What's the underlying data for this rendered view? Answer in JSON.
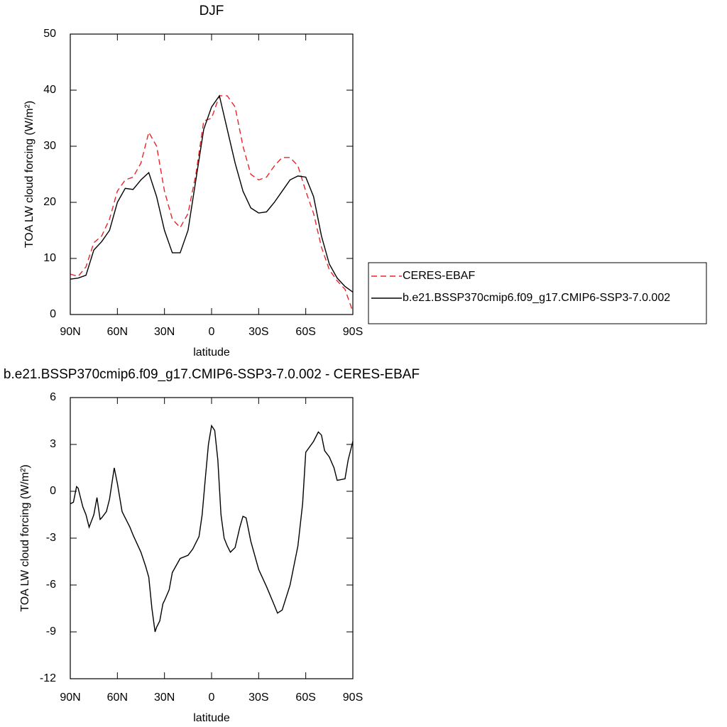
{
  "chart_data": [
    {
      "type": "line",
      "title": "DJF",
      "xlabel": "latitude",
      "ylabel": "TOA LW cloud forcing (W/m²)",
      "x": [
        90,
        85,
        80,
        75,
        70,
        65,
        60,
        55,
        50,
        45,
        40,
        35,
        30,
        25,
        20,
        15,
        10,
        5,
        0,
        -5,
        -10,
        -15,
        -20,
        -25,
        -30,
        -35,
        -40,
        -45,
        -50,
        -55,
        -60,
        -65,
        -70,
        -75,
        -80,
        -85,
        -90
      ],
      "series": [
        {
          "name": "CERES-EBAF",
          "color": "#e8242b",
          "linestyle": "dashed",
          "values": [
            7.2,
            6.8,
            8.5,
            12.8,
            14,
            17,
            22,
            24,
            24.5,
            27,
            32.5,
            30,
            22,
            17,
            15.5,
            18,
            25,
            34.5,
            35,
            39,
            39,
            37,
            30,
            25,
            24,
            24.5,
            26.5,
            28,
            28,
            26.5,
            22,
            18,
            12,
            8,
            6,
            4.5,
            0.5
          ]
        },
        {
          "name": "b.e21.BSSP370cmip6.f09_g17.CMIP6-SSP3-7.0.002",
          "color": "#000000",
          "linestyle": "solid",
          "values": [
            6.3,
            6.5,
            7,
            11.5,
            13,
            15,
            20,
            22.5,
            22.3,
            24,
            25.3,
            21,
            15,
            11,
            11,
            15,
            24,
            33,
            37,
            39,
            33,
            27,
            22,
            19,
            18.1,
            18.3,
            20,
            22,
            24,
            24.7,
            24.5,
            21,
            14,
            9,
            6.5,
            5,
            4
          ]
        }
      ],
      "xlim": [
        90,
        -90
      ],
      "xticks": [
        {
          "value": 90,
          "label": "90N"
        },
        {
          "value": 60,
          "label": "60N"
        },
        {
          "value": 30,
          "label": "30N"
        },
        0,
        {
          "value": -30,
          "label": "30S"
        },
        {
          "value": -60,
          "label": "60S"
        },
        {
          "value": -90,
          "label": "90S"
        }
      ],
      "ylim": [
        0,
        50
      ],
      "yticks": [
        0,
        10,
        20,
        30,
        40,
        50
      ],
      "legend": "right"
    },
    {
      "type": "line",
      "title": "b.e21.BSSP370cmip6.f09_g17.CMIP6-SSP3-7.0.002 - CERES-EBAF",
      "xlabel": "latitude",
      "ylabel": "TOA LW cloud forcing (W/m²)",
      "x": [
        90,
        88,
        86,
        85,
        82,
        80,
        78,
        75,
        73,
        71,
        70,
        67,
        65,
        62,
        60,
        57,
        55,
        52,
        50,
        45,
        42,
        40,
        38,
        36,
        35,
        33,
        31,
        30,
        27,
        25,
        20,
        15,
        12,
        10,
        8,
        6,
        4,
        2,
        0,
        -2,
        -4,
        -6,
        -8,
        -10,
        -12,
        -15,
        -18,
        -20,
        -22,
        -25,
        -30,
        -35,
        -40,
        -42,
        -45,
        -50,
        -55,
        -58,
        -60,
        -65,
        -68,
        -70,
        -72,
        -75,
        -78,
        -80,
        -85,
        -87,
        -90
      ],
      "series": [
        {
          "name": "b.e21.BSSP370cmip6.f09_g17.CMIP6-SSP3-7.0.002 - CERES-EBAF",
          "color": "#000000",
          "linestyle": "solid",
          "values": [
            -0.8,
            -0.7,
            0.3,
            0.2,
            -1.0,
            -1.5,
            -2.3,
            -1.5,
            -0.4,
            -1.8,
            -1.7,
            -1.3,
            -0.5,
            1.5,
            0.5,
            -1.3,
            -1.7,
            -2.3,
            -2.8,
            -3.9,
            -4.8,
            -5.5,
            -7.5,
            -9.0,
            -8.7,
            -8.3,
            -7.2,
            -7.0,
            -6.3,
            -5.2,
            -4.3,
            -4.1,
            -3.7,
            -3.3,
            -2.9,
            -1.5,
            0.8,
            3.0,
            4.2,
            3.9,
            2.0,
            -1.5,
            -3.0,
            -3.5,
            -3.9,
            -3.6,
            -2.3,
            -1.6,
            -1.7,
            -3.2,
            -5.0,
            -6.1,
            -7.3,
            -7.8,
            -7.6,
            -6.0,
            -3.5,
            -0.8,
            2.5,
            3.2,
            3.8,
            3.6,
            2.6,
            2.2,
            1.5,
            0.7,
            0.8,
            2.0,
            3.2
          ]
        }
      ],
      "xlim": [
        90,
        -90
      ],
      "xticks": [
        {
          "value": 90,
          "label": "90N"
        },
        {
          "value": 60,
          "label": "60N"
        },
        {
          "value": 30,
          "label": "30N"
        },
        0,
        {
          "value": -30,
          "label": "30S"
        },
        {
          "value": -60,
          "label": "60S"
        },
        {
          "value": -90,
          "label": "90S"
        }
      ],
      "ylim": [
        -12,
        6
      ],
      "yticks": [
        -12,
        -9,
        -6,
        -3,
        0,
        3,
        6
      ]
    }
  ]
}
